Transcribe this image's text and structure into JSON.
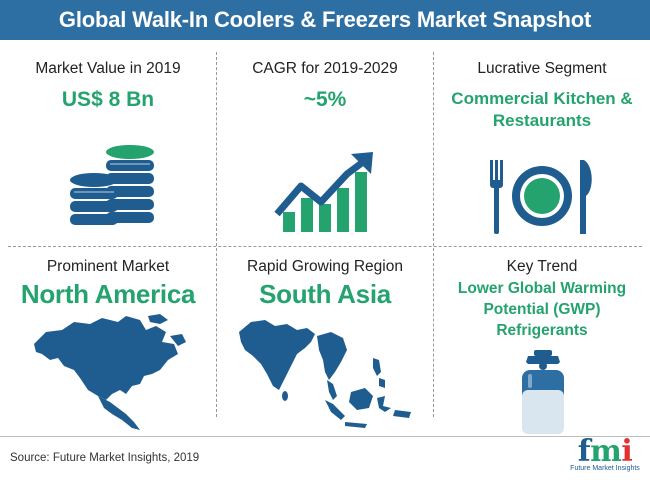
{
  "header": {
    "title": "Global Walk-In Coolers & Freezers Market Snapshot"
  },
  "cells": [
    {
      "label": "Market Value in 2019",
      "value": "US$ 8 Bn",
      "icon": "coin-stack-icon"
    },
    {
      "label": "CAGR for 2019-2029",
      "value": "~5%",
      "icon": "growth-chart-icon"
    },
    {
      "label": "Lucrative Segment",
      "value_lines": [
        "Commercial Kitchen &",
        "Restaurants"
      ],
      "icon": "plate-fork-knife-icon"
    },
    {
      "label": "Prominent Market",
      "value": "North America",
      "icon": "north-america-map-icon"
    },
    {
      "label": "Rapid Growing Region",
      "value": "South Asia",
      "icon": "south-asia-map-icon"
    },
    {
      "label": "Key Trend",
      "value_lines": [
        "Lower Global Warming",
        "Potential (GWP)",
        "Refrigerants"
      ],
      "icon": "refrigerant-cylinder-icon"
    }
  ],
  "footer": {
    "source": "Source: Future Market Insights, 2019"
  },
  "logo": {
    "letters": [
      "f",
      "m",
      "i"
    ],
    "tagline": "Future Market Insights"
  },
  "colors": {
    "banner": "#2d6fa3",
    "accent_green": "#24a36f",
    "icon_blue": "#1f5d91",
    "logo_red": "#e0322f"
  }
}
